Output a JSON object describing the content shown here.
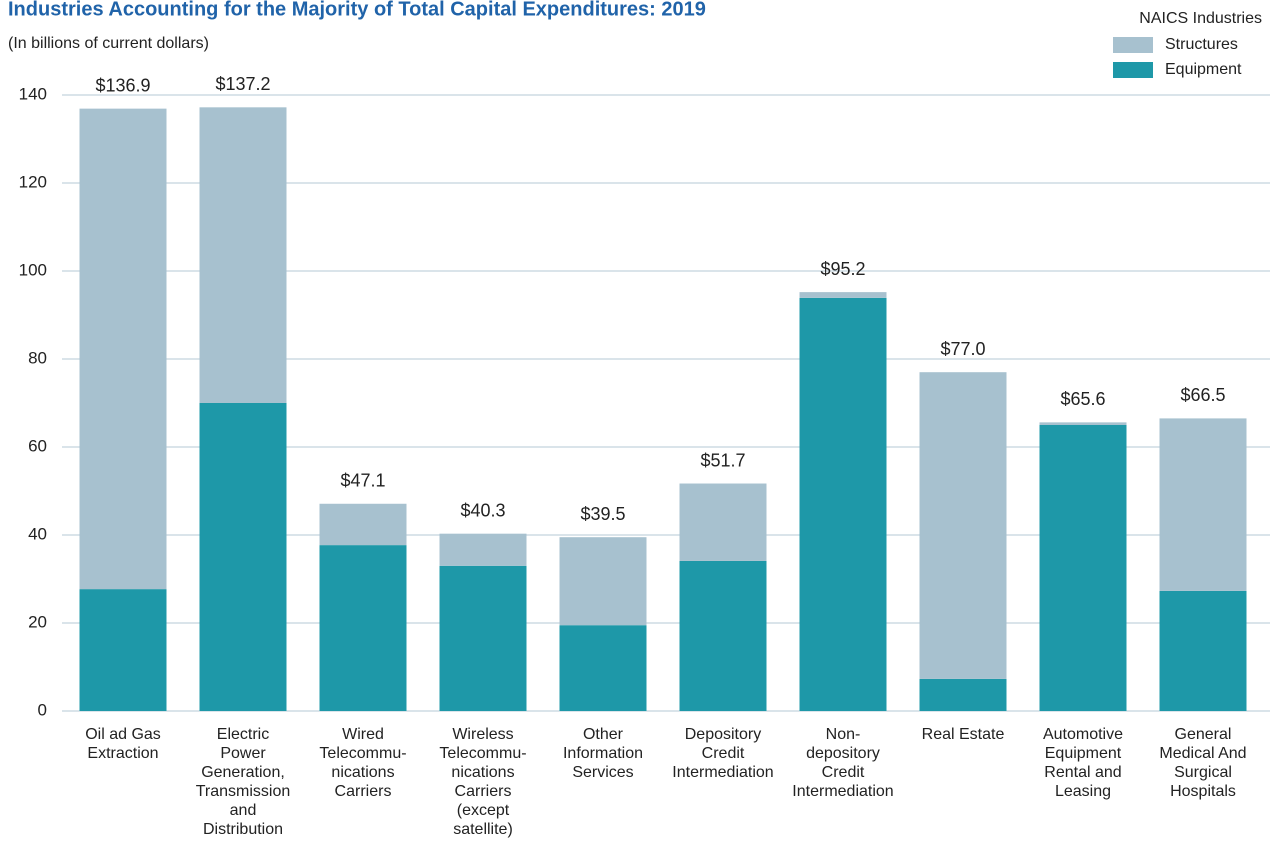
{
  "chart_data": {
    "type": "stacked-bar",
    "title": "Industries Accounting for the Majority of Total Capital Expenditures: 2019",
    "subtitle": "(In billions of current dollars)",
    "legend_title": "NAICS Industries",
    "legend_position": "upper right",
    "categories": [
      "Oil ad Gas\nExtraction",
      "Electric\nPower\nGeneration,\nTransmission\nand\nDistribution",
      "Wired\nTelecommu-\nnications\nCarriers",
      "Wireless\nTelecommu-\nnications\nCarriers\n(except\nsatellite)",
      "Other\nInformation\nServices",
      "Depository\nCredit\nIntermediation",
      "Non-\ndepository\nCredit\nIntermediation",
      "Real Estate",
      "Automotive\nEquipment\nRental and\nLeasing",
      "General\nMedical And\nSurgical\nHospitals"
    ],
    "series": [
      {
        "name": "Structures",
        "color": "#a7c1cf",
        "values": [
          109.2,
          67.2,
          9.4,
          7.3,
          20.0,
          17.6,
          1.3,
          69.7,
          0.6,
          39.2
        ]
      },
      {
        "name": "Equipment",
        "color": "#1e98a8",
        "values": [
          27.7,
          70.0,
          37.7,
          33.0,
          19.5,
          34.1,
          93.9,
          7.3,
          65.0,
          27.3
        ]
      }
    ],
    "totals": [
      136.9,
      137.2,
      47.1,
      40.3,
      39.5,
      51.7,
      95.2,
      77.0,
      65.6,
      66.5
    ],
    "total_labels": [
      "$136.9",
      "$137.2",
      "$47.1",
      "$40.3",
      "$39.5",
      "$51.7",
      "$95.2",
      "$77.0",
      "$65.6",
      "$66.5"
    ],
    "ylim": [
      0,
      140
    ],
    "yticks": [
      0,
      20,
      40,
      60,
      80,
      100,
      120,
      140
    ],
    "grid": true
  }
}
